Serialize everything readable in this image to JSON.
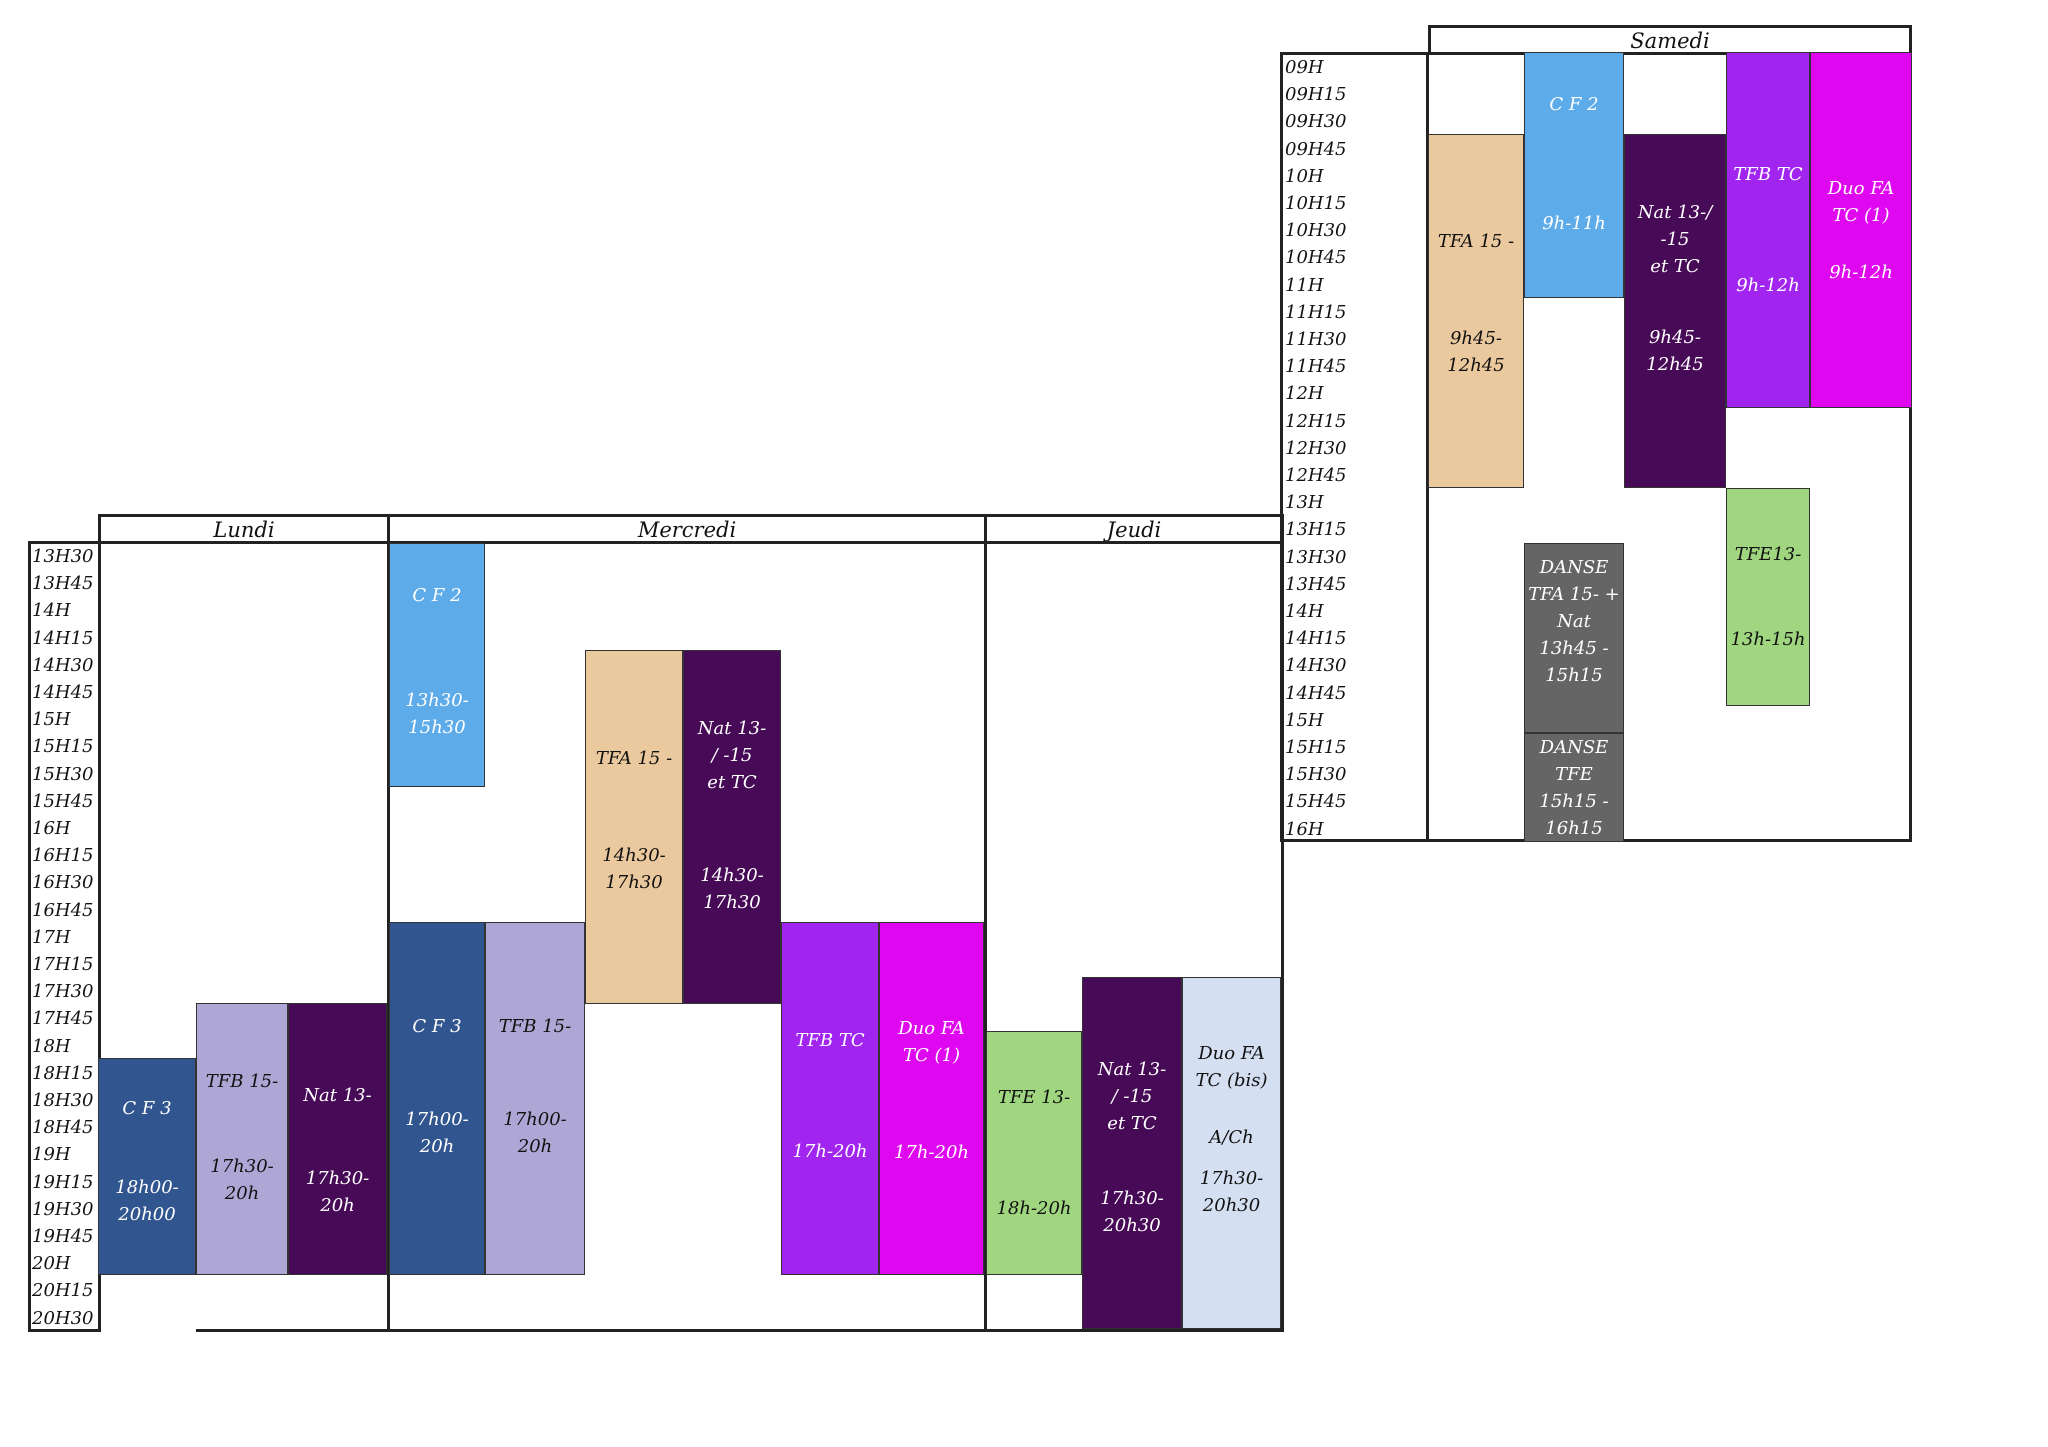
{
  "samedi": {
    "day": "Samedi",
    "times": [
      "09H",
      "09H15",
      "09H30",
      "09H45",
      "10H",
      "10H15",
      "10H30",
      "10H45",
      "11H",
      "11H15",
      "11H30",
      "11H45",
      "12H",
      "12H15",
      "12H30",
      "12H45",
      "13H",
      "13H15",
      "13H30",
      "13H45",
      "14H",
      "14H15",
      "14H30",
      "14H45",
      "15H",
      "15H15",
      "15H30",
      "15H45",
      "16H"
    ],
    "blocks": [
      {
        "name": "TFA 15 -",
        "time": "9h45-\n12h45",
        "color": "#ebc99e"
      },
      {
        "name": "C F 2",
        "time": "9h-11h",
        "color": "#5eabea"
      },
      {
        "name": "Nat 13-/\n-15\net TC",
        "time": "9h45-\n12h45",
        "color": "#470a56"
      },
      {
        "name": "TFB TC",
        "time": "9h-12h",
        "color": "#a124ef"
      },
      {
        "name": "Duo FA\nTC (1)",
        "time": "9h-12h",
        "color": "#df06f0"
      },
      {
        "name": "TFE13-",
        "time": "13h-15h",
        "color": "#9fd67f"
      },
      {
        "name": "DANSE\nTFA 15- +\nNat",
        "time": "13h45 -\n15h15",
        "color": "#656565"
      },
      {
        "name": "DANSE\nTFE",
        "time": "15h15 -\n16h15",
        "color": "#656565"
      }
    ]
  },
  "week": {
    "days": [
      "Lundi",
      "Mercredi",
      "Jeudi"
    ],
    "times": [
      "13H30",
      "13H45",
      "14H",
      "14H15",
      "14H30",
      "14H45",
      "15H",
      "15H15",
      "15H30",
      "15H45",
      "16H",
      "16H15",
      "16H30",
      "16H45",
      "17H",
      "17H15",
      "17H30",
      "17H45",
      "18H",
      "18H15",
      "18H30",
      "18H45",
      "19H",
      "19H15",
      "19H30",
      "19H45",
      "20H",
      "20H15",
      "20H30"
    ],
    "lundi": [
      {
        "name": "C F 3",
        "time": "18h00-\n20h00",
        "color": "#31558e"
      },
      {
        "name": "TFB 15-",
        "time": "17h30-\n20h",
        "color": "#aea7d5"
      },
      {
        "name": "Nat 13-",
        "time": "17h30-\n20h",
        "color": "#470a56"
      }
    ],
    "mercredi": [
      {
        "name": "C F 2",
        "time": "13h30-\n15h30",
        "color": "#5eabea"
      },
      {
        "name": "C F 3",
        "time": "17h00-\n20h",
        "color": "#31558e"
      },
      {
        "name": "TFB 15-",
        "time": "17h00-\n20h",
        "color": "#aea7d5"
      },
      {
        "name": "TFA 15 -",
        "time": "14h30-\n17h30",
        "color": "#ebc99e"
      },
      {
        "name": "Nat 13-\n/ -15\net TC",
        "time": "14h30-\n17h30",
        "color": "#470a56"
      },
      {
        "name": "TFB TC",
        "time": "17h-20h",
        "color": "#a124ef"
      },
      {
        "name": "Duo FA\nTC (1)",
        "time": "17h-20h",
        "color": "#df06f0"
      }
    ],
    "jeudi": [
      {
        "name": "TFE 13-",
        "time": "18h-20h",
        "color": "#9fd67f"
      },
      {
        "name": "Nat 13-\n/ -15\net TC",
        "time": "17h30-\n20h30",
        "color": "#470a56"
      },
      {
        "name": "Duo FA\nTC (bis)",
        "sub": "A/Ch",
        "time": "17h30-\n20h30",
        "color": "#d4dff1"
      }
    ]
  }
}
